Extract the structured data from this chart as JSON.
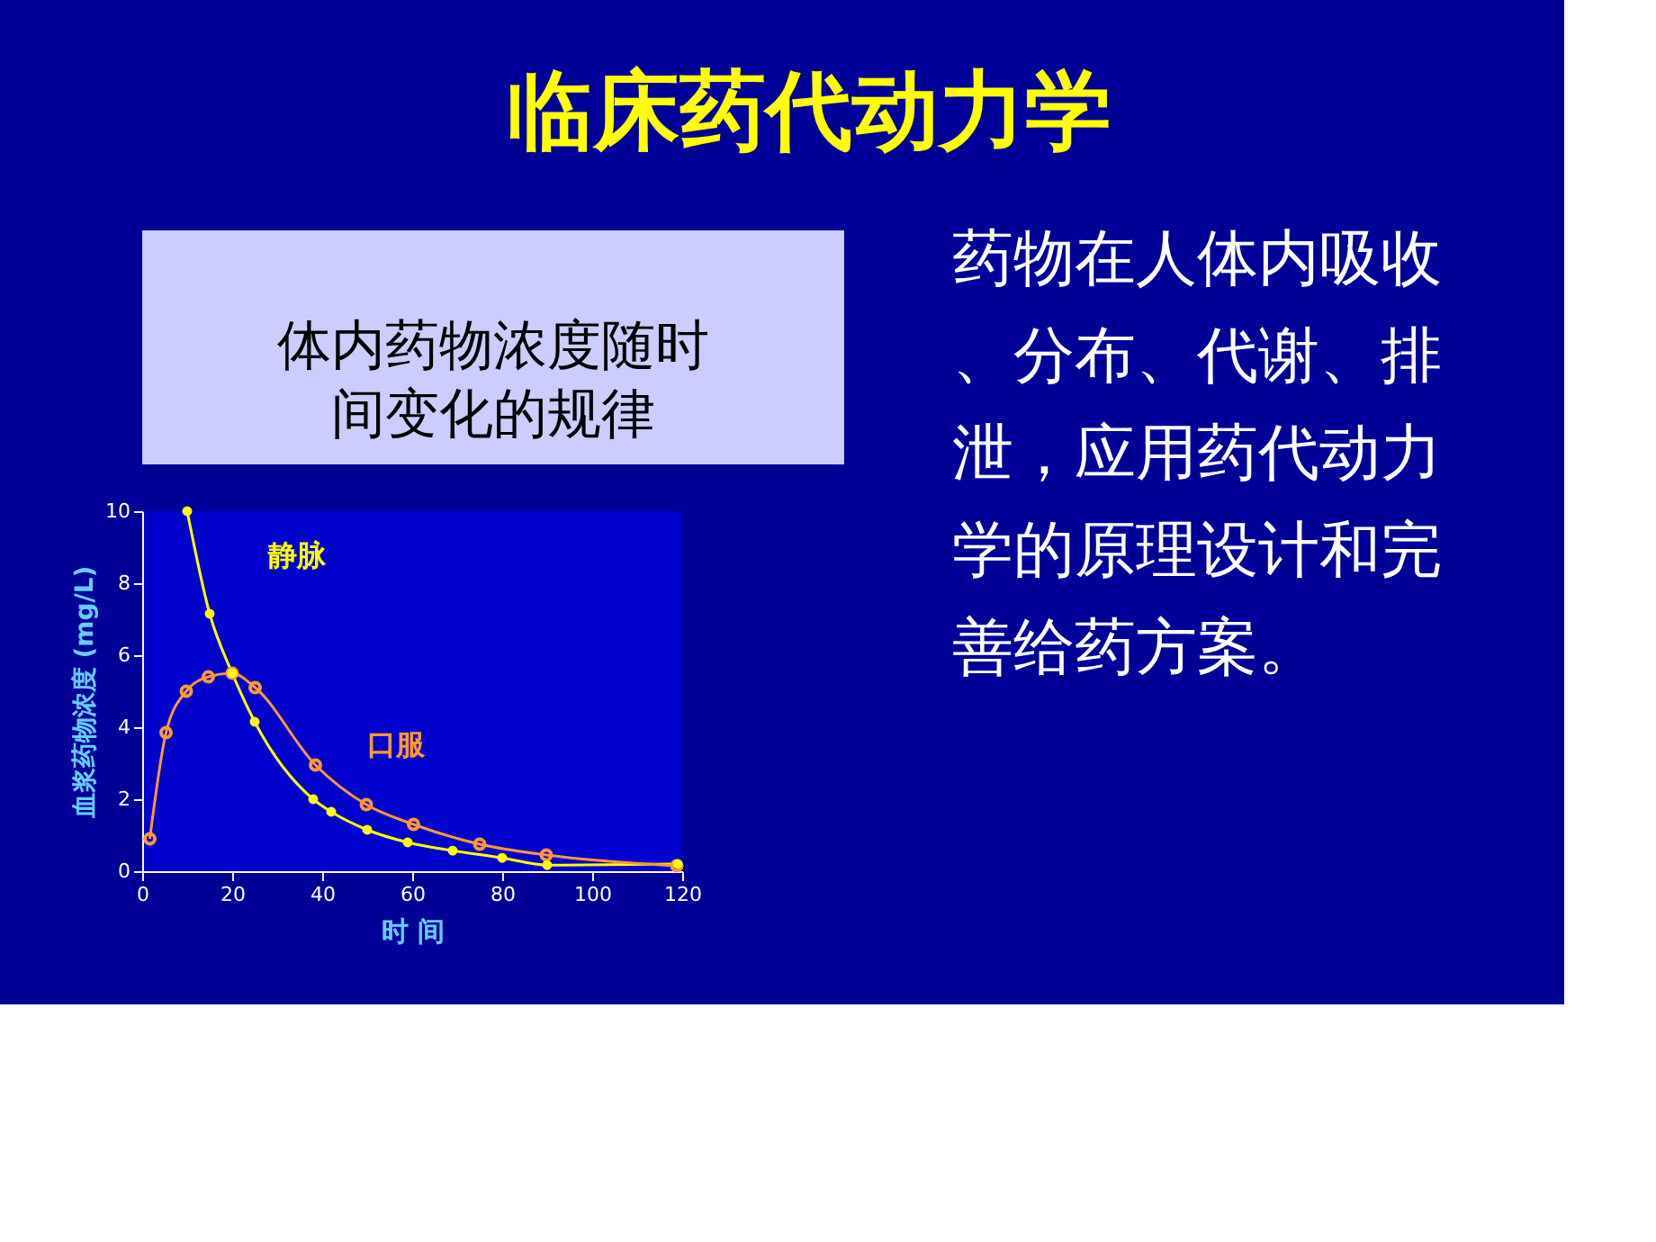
{
  "chart_data": {
    "type": "line",
    "title": "临床药代动力学",
    "subtitle": "体内药物浓度随时间变化的规律",
    "xlabel": "时 间",
    "ylabel": "血浆药物浓度 (mg/L)",
    "annotations": [
      "药物在人体内吸收、分布、代谢、排泄，应用药代动力学的原理设计和完善给药方案。"
    ],
    "xlim": [
      0,
      120
    ],
    "xticks": [
      0,
      20,
      40,
      60,
      80,
      100,
      120
    ],
    "ylim": [
      0,
      10
    ],
    "yticks": [
      0,
      2,
      4,
      6,
      8,
      10
    ],
    "grid": false,
    "marker": "circle",
    "line_style": "solid",
    "series": [
      {
        "name": "静脉",
        "color": "#ffff00",
        "x": [
          10,
          15,
          20,
          25,
          38,
          42,
          50,
          59,
          69,
          80,
          90,
          119
        ],
        "values": [
          10,
          7.15,
          5.5,
          4.15,
          2.0,
          1.65,
          1.15,
          0.8,
          0.57,
          0.37,
          0.17,
          0.2
        ]
      },
      {
        "name": "口服",
        "color": "#ff9933",
        "x": [
          1.7,
          5.3,
          9.8,
          14.7,
          20,
          25.1,
          38.5,
          49.8,
          60.3,
          75,
          89.8,
          118.8
        ],
        "values": [
          0.9,
          3.85,
          5.0,
          5.4,
          5.5,
          5.1,
          2.95,
          1.85,
          1.3,
          0.75,
          0.45,
          0.15
        ]
      }
    ]
  }
}
